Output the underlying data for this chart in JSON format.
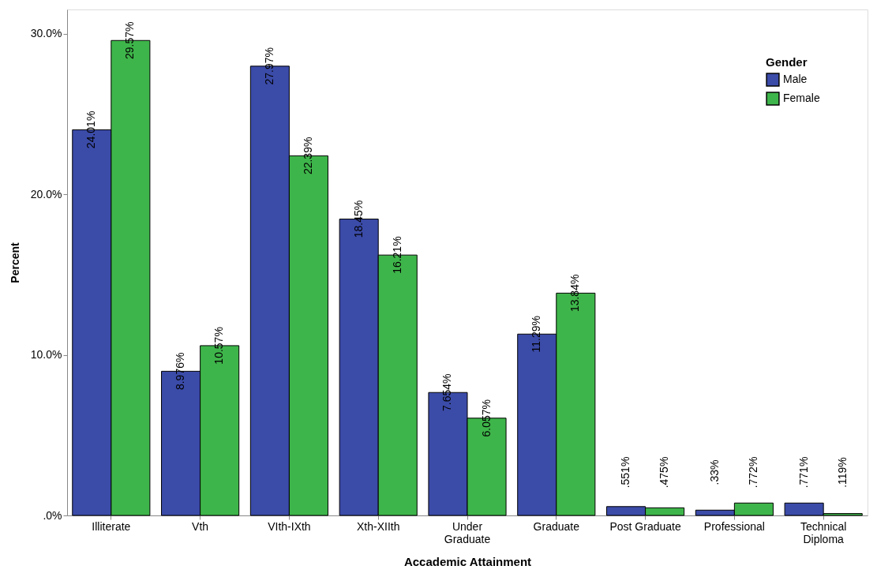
{
  "chart_data": {
    "type": "bar",
    "xlabel": "Accademic Attainment",
    "ylabel": "Percent",
    "legend_title": "Gender",
    "legend": "top right",
    "grid": false,
    "categories": [
      "Illiterate",
      "Vth",
      "VIth-IXth",
      "Xth-XIIth",
      "Under\nGraduate",
      "Graduate",
      "Post Graduate",
      "Professional",
      "Technical\nDiploma"
    ],
    "ylim": [
      0,
      31.5
    ],
    "yticks": [
      {
        "value": 0,
        "label": ".0%"
      },
      {
        "value": 10,
        "label": "10.0%"
      },
      {
        "value": 20,
        "label": "20.0%"
      },
      {
        "value": 30,
        "label": "30.0%"
      }
    ],
    "series": [
      {
        "name": "Male",
        "color": "#3b4ba8",
        "values": [
          24.01,
          8.976,
          27.97,
          18.45,
          7.654,
          11.29,
          0.551,
          0.33,
          0.771
        ],
        "value_labels": [
          "24.01%",
          "8.976%",
          "27.97%",
          "18.45%",
          "7.654%",
          "11.29%",
          ".551%",
          ".33%",
          ".771%"
        ]
      },
      {
        "name": "Female",
        "color": "#3eb54a",
        "values": [
          29.57,
          10.57,
          22.39,
          16.21,
          6.057,
          13.84,
          0.475,
          0.772,
          0.119
        ],
        "value_labels": [
          "29.57%",
          "10.57%",
          "22.39%",
          "16.21%",
          "6.057%",
          "13.84%",
          ".475%",
          ".772%",
          ".119%"
        ]
      }
    ]
  }
}
